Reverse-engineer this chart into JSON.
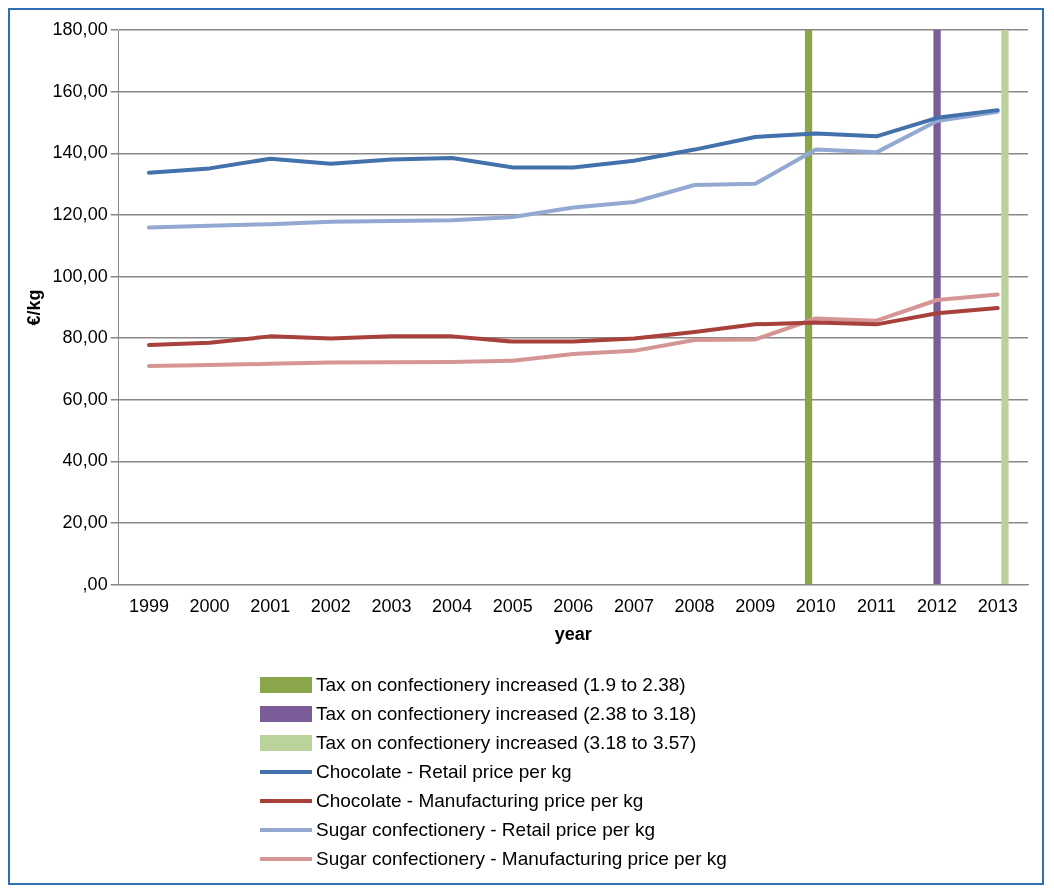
{
  "chart_data": {
    "type": "line",
    "xlabel": "year",
    "ylabel": "€/kg",
    "categories": [
      "1999",
      "2000",
      "2001",
      "2002",
      "2003",
      "2004",
      "2005",
      "2006",
      "2007",
      "2008",
      "2009",
      "2010",
      "2011",
      "2012",
      "2013"
    ],
    "series": [
      {
        "name": "Tax on confectionery increased (1.9 to 2.38)",
        "type": "bar",
        "color": "#8aa64a",
        "values": [
          null,
          null,
          null,
          null,
          null,
          null,
          null,
          null,
          null,
          null,
          null,
          180,
          null,
          null,
          null
        ]
      },
      {
        "name": "Tax on confectionery increased (2.38 to 3.18)",
        "type": "bar",
        "color": "#7a5c98",
        "values": [
          null,
          null,
          null,
          null,
          null,
          null,
          null,
          null,
          null,
          null,
          null,
          null,
          null,
          180,
          null
        ]
      },
      {
        "name": "Tax on confectionery increased (3.18 to 3.57)",
        "type": "bar",
        "color": "#b9d39a",
        "values": [
          null,
          null,
          null,
          null,
          null,
          null,
          null,
          null,
          null,
          null,
          null,
          null,
          null,
          null,
          180
        ]
      },
      {
        "name": "Chocolate - Retail price per kg",
        "color": "#4271ab",
        "values": [
          133.7,
          135.1,
          138.2,
          136.6,
          138.0,
          138.5,
          135.4,
          135.4,
          137.6,
          141.2,
          145.3,
          146.4,
          145.5,
          151.5,
          154.0
        ]
      },
      {
        "name": "Chocolate - Manufacturing price per kg",
        "color": "#a8403c",
        "values": [
          77.8,
          78.5,
          80.6,
          79.9,
          80.6,
          80.6,
          78.9,
          78.9,
          79.9,
          82.0,
          84.5,
          85.1,
          84.5,
          88.1,
          89.8
        ]
      },
      {
        "name": "Sugar confectionery - Retail price per kg",
        "color": "#93a9d2",
        "values": [
          115.9,
          116.5,
          117.0,
          117.8,
          118.0,
          118.3,
          119.3,
          122.4,
          124.2,
          129.7,
          130.1,
          141.2,
          140.3,
          150.5,
          153.5
        ]
      },
      {
        "name": "Sugar confectionery - Manufacturing price per kg",
        "color": "#d69595",
        "values": [
          71.0,
          71.3,
          71.7,
          72.1,
          72.2,
          72.3,
          72.7,
          74.9,
          75.9,
          79.4,
          79.6,
          86.4,
          85.7,
          92.4,
          94.2
        ]
      }
    ],
    "ylim": [
      0,
      180
    ],
    "yticks": [
      {
        "value": 0,
        "label": ",00"
      },
      {
        "value": 20,
        "label": "20,00"
      },
      {
        "value": 40,
        "label": "40,00"
      },
      {
        "value": 60,
        "label": "60,00"
      },
      {
        "value": 80,
        "label": "80,00"
      },
      {
        "value": 100,
        "label": "100,00"
      },
      {
        "value": 120,
        "label": "120,00"
      },
      {
        "value": 140,
        "label": "140,00"
      },
      {
        "value": 160,
        "label": "160,00"
      },
      {
        "value": 180,
        "label": "180,00"
      }
    ],
    "grid": "y",
    "legend": "bottom",
    "marker": "none",
    "line_style": "solid"
  }
}
